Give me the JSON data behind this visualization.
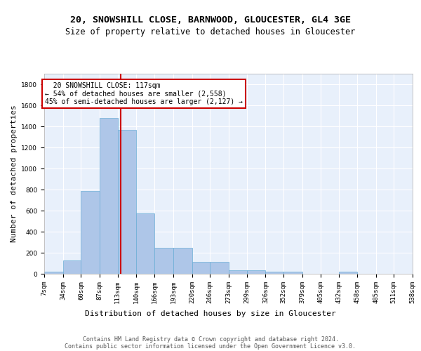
{
  "title1": "20, SNOWSHILL CLOSE, BARNWOOD, GLOUCESTER, GL4 3GE",
  "title2": "Size of property relative to detached houses in Gloucester",
  "xlabel": "Distribution of detached houses by size in Gloucester",
  "ylabel": "Number of detached properties",
  "bin_edges": [
    7,
    34,
    60,
    87,
    113,
    140,
    166,
    193,
    220,
    246,
    273,
    299,
    326,
    352,
    379,
    405,
    432,
    458,
    485,
    511,
    538
  ],
  "bar_heights": [
    20,
    130,
    790,
    1480,
    1370,
    575,
    245,
    245,
    115,
    115,
    35,
    35,
    20,
    20,
    0,
    0,
    20,
    0,
    0,
    0
  ],
  "bar_color": "#aec6e8",
  "bar_edge_color": "#6aaed6",
  "reference_line_x": 117,
  "annotation_text": "  20 SNOWSHILL CLOSE: 117sqm\n← 54% of detached houses are smaller (2,558)\n45% of semi-detached houses are larger (2,127) →",
  "annotation_box_color": "#ffffff",
  "annotation_box_edge": "#cc0000",
  "vline_color": "#cc0000",
  "background_color": "#e8f0fb",
  "grid_color": "#ffffff",
  "footer1": "Contains HM Land Registry data © Crown copyright and database right 2024.",
  "footer2": "Contains public sector information licensed under the Open Government Licence v3.0.",
  "ylim": [
    0,
    1900
  ],
  "title1_fontsize": 9.5,
  "title2_fontsize": 8.5,
  "ylabel_fontsize": 8,
  "xlabel_fontsize": 8,
  "tick_fontsize": 6.5,
  "annotation_fontsize": 7,
  "footer_fontsize": 6
}
